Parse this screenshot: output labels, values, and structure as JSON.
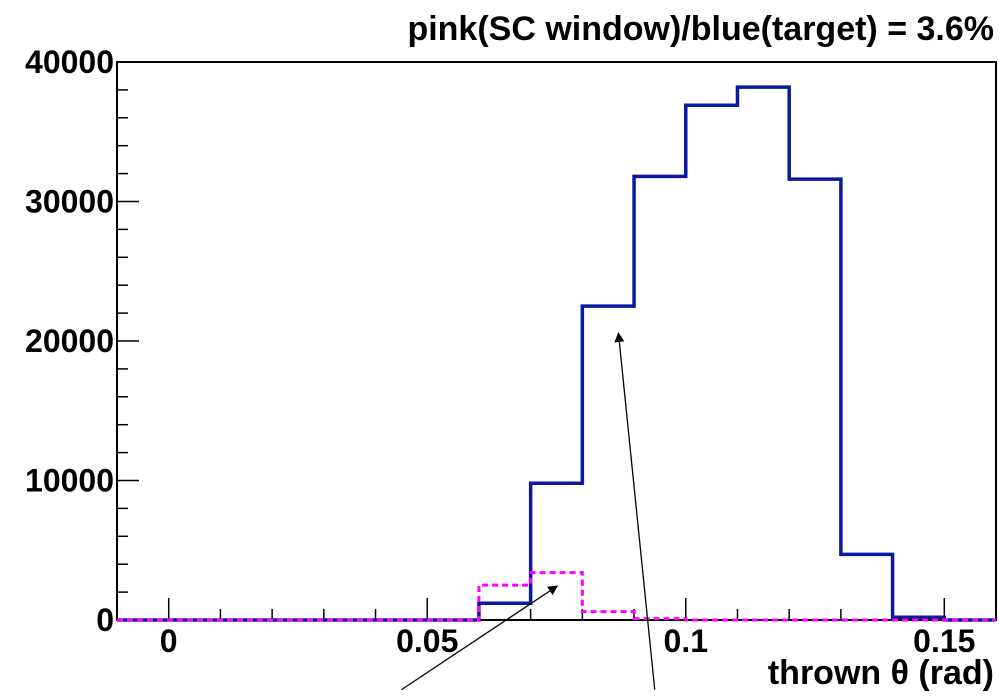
{
  "chart_data": {
    "type": "histogram",
    "title": "pink(SC window)/blue(target) = 3.6%",
    "xlabel": "thrown  θ (rad)",
    "ylabel": "",
    "xlim": [
      -0.01,
      0.16
    ],
    "ylim": [
      0,
      40000
    ],
    "x_tick_labels": [
      "0",
      "0.05",
      "0.1",
      "0.15"
    ],
    "x_tick_values": [
      0,
      0.05,
      0.1,
      0.15
    ],
    "y_tick_labels": [
      "0",
      "10000",
      "20000",
      "30000",
      "40000"
    ],
    "y_tick_values": [
      0,
      10000,
      20000,
      30000,
      40000
    ],
    "bin_edges": [
      -0.01,
      0.0,
      0.01,
      0.02,
      0.03,
      0.04,
      0.05,
      0.06,
      0.07,
      0.08,
      0.09,
      0.1,
      0.11,
      0.12,
      0.13,
      0.14,
      0.15,
      0.16
    ],
    "series": [
      {
        "color": "#0a1aa0",
        "line_style": "solid",
        "values": [
          0,
          0,
          0,
          0,
          0,
          0,
          0,
          1200,
          9800,
          22500,
          31800,
          36900,
          38200,
          31600,
          4700,
          200,
          0
        ]
      },
      {
        "color": "#ff00ff",
        "line_style": "dashed",
        "values": [
          0,
          0,
          0,
          0,
          0,
          0,
          0,
          2500,
          3400,
          600,
          100,
          0,
          0,
          0,
          0,
          0,
          0
        ]
      }
    ],
    "annotations": [
      {
        "type": "arrow",
        "from": [
          0.045,
          -5000
        ],
        "to": [
          0.075,
          2400
        ]
      },
      {
        "type": "arrow",
        "from": [
          0.094,
          -5000
        ],
        "to": [
          0.087,
          20500
        ]
      }
    ],
    "grid": false
  }
}
